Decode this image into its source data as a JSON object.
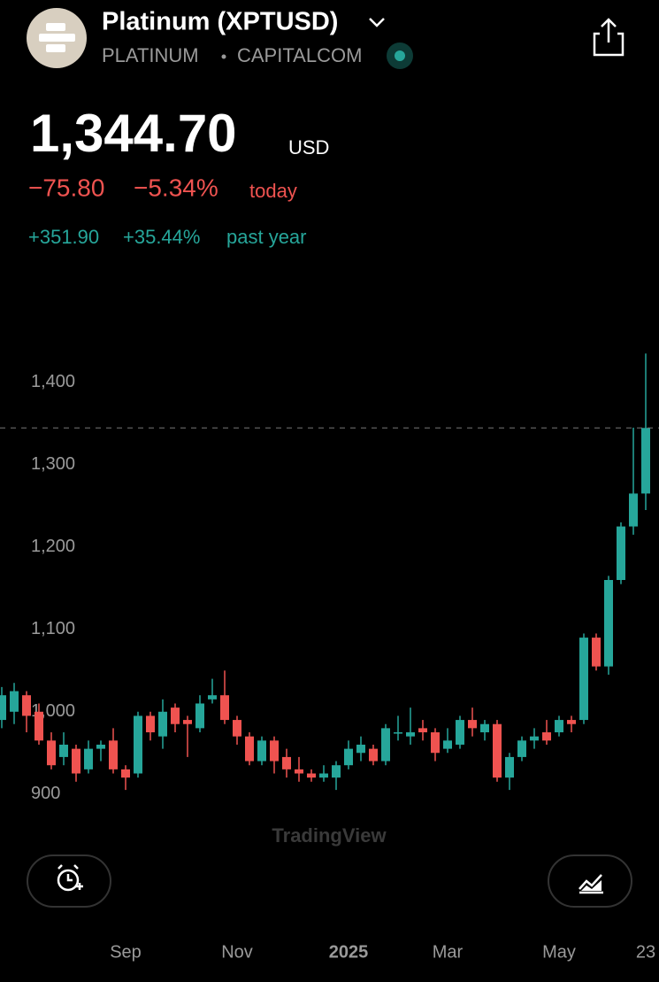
{
  "header": {
    "title": "Platinum (XPTUSD)",
    "symbol": "PLATINUM",
    "exchange": "CAPITALCOM",
    "price": "1,344.70",
    "currency": "USD",
    "change_today": "−75.80",
    "change_today_pct": "−5.34%",
    "today_label": "today",
    "change_year": "+351.90",
    "change_year_pct": "+35.44%",
    "year_label": "past year"
  },
  "watermark": "TradingView",
  "chart_data": {
    "type": "candlestick",
    "categories": [
      null,
      null,
      null,
      null,
      null,
      null,
      null,
      null,
      null,
      null,
      "Sep",
      null,
      null,
      null,
      null,
      null,
      null,
      null,
      null,
      "Nov",
      null,
      null,
      null,
      null,
      null,
      null,
      null,
      null,
      "2025",
      null,
      null,
      null,
      null,
      null,
      null,
      null,
      "Mar",
      null,
      null,
      null,
      null,
      null,
      null,
      null,
      null,
      "May",
      null,
      null,
      null,
      null,
      null,
      null,
      "23"
    ],
    "open": [
      990,
      1000,
      1020,
      1000,
      965,
      945,
      955,
      930,
      955,
      965,
      930,
      925,
      995,
      970,
      1005,
      990,
      980,
      1015,
      1020,
      990,
      970,
      940,
      965,
      945,
      930,
      925,
      920,
      920,
      935,
      950,
      955,
      940,
      975,
      970,
      980,
      975,
      955,
      960,
      990,
      975,
      985,
      920,
      945,
      965,
      975,
      975,
      990,
      990,
      1090,
      1055,
      1160,
      1225,
      1265
    ],
    "high": [
      1030,
      1035,
      1025,
      1010,
      975,
      975,
      960,
      965,
      965,
      980,
      935,
      1000,
      1000,
      1015,
      1010,
      995,
      1020,
      1040,
      1050,
      995,
      975,
      970,
      970,
      955,
      945,
      930,
      935,
      940,
      965,
      970,
      960,
      985,
      995,
      1005,
      990,
      980,
      980,
      995,
      1005,
      990,
      990,
      950,
      970,
      980,
      990,
      995,
      995,
      1095,
      1095,
      1165,
      1230,
      1345,
      1435
    ],
    "low": [
      980,
      985,
      975,
      960,
      930,
      935,
      915,
      925,
      940,
      925,
      905,
      920,
      965,
      955,
      975,
      945,
      975,
      1010,
      985,
      960,
      935,
      935,
      925,
      920,
      915,
      915,
      915,
      905,
      930,
      940,
      935,
      935,
      965,
      960,
      965,
      940,
      950,
      955,
      970,
      965,
      915,
      905,
      940,
      955,
      960,
      970,
      975,
      985,
      1050,
      1045,
      1155,
      1215,
      1245
    ],
    "close": [
      1020,
      1025,
      995,
      965,
      935,
      960,
      925,
      955,
      960,
      930,
      920,
      995,
      975,
      1000,
      985,
      985,
      1010,
      1020,
      990,
      970,
      940,
      965,
      940,
      930,
      925,
      920,
      925,
      935,
      955,
      960,
      940,
      980,
      975,
      975,
      975,
      950,
      965,
      990,
      980,
      985,
      920,
      945,
      965,
      970,
      965,
      990,
      985,
      1090,
      1055,
      1160,
      1225,
      1265,
      1344.7
    ],
    "ylim": [
      875,
      1445
    ],
    "yticks": [
      {
        "value": 1400,
        "label": "1,400"
      },
      {
        "value": 1300,
        "label": "1,300"
      },
      {
        "value": 1200,
        "label": "1,200"
      },
      {
        "value": 1100,
        "label": "1,100"
      },
      {
        "value": 1000,
        "label": "1,000"
      },
      900
    ],
    "up_color": "#26a69a",
    "down_color": "#ef5350"
  }
}
